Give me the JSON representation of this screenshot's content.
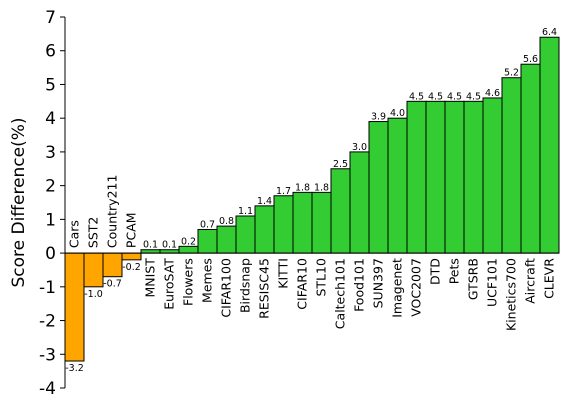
{
  "chart_data": {
    "type": "bar",
    "ylabel": "Score Difference(%)",
    "ylim": [
      -4,
      7
    ],
    "yticks": [
      -4,
      -3,
      -2,
      -1,
      0,
      1,
      2,
      3,
      4,
      5,
      6,
      7
    ],
    "ytick_labels": [
      "-4",
      "-3",
      "-2",
      "-1",
      "0",
      "1",
      "2",
      "3",
      "4",
      "5",
      "6",
      "7"
    ],
    "grid": false,
    "colors": {
      "positive": "#33cc33",
      "negative": "#ffa500",
      "edge": "#000000"
    },
    "categories": [
      "Cars",
      "SST2",
      "Country211",
      "PCAM",
      "MNIST",
      "EuroSAT",
      "Flowers",
      "Memes",
      "CIFAR100",
      "Birdsnap",
      "RESISC45",
      "KITTI",
      "CIFAR10",
      "STL10",
      "Caltech101",
      "Food101",
      "SUN397",
      "Imagenet",
      "VOC2007",
      "DTD",
      "Pets",
      "GTSRB",
      "UCF101",
      "Kinetics700",
      "Aircraft",
      "CLEVR"
    ],
    "values": [
      -3.2,
      -1.0,
      -0.7,
      -0.2,
      0.1,
      0.1,
      0.2,
      0.7,
      0.8,
      1.1,
      1.4,
      1.7,
      1.8,
      1.8,
      2.5,
      3.0,
      3.9,
      4.0,
      4.5,
      4.5,
      4.5,
      4.5,
      4.6,
      5.2,
      5.6,
      6.4
    ],
    "value_labels": [
      "-3.2",
      "-1.0",
      "-0.7",
      "-0.2",
      "0.1",
      "0.1",
      "0.2",
      "0.7",
      "0.8",
      "1.1",
      "1.4",
      "1.7",
      "1.8",
      "1.8",
      "2.5",
      "3.0",
      "3.9",
      "4.0",
      "4.5",
      "4.5",
      "4.5",
      "4.5",
      "4.6",
      "5.2",
      "5.6",
      "6.4"
    ]
  }
}
